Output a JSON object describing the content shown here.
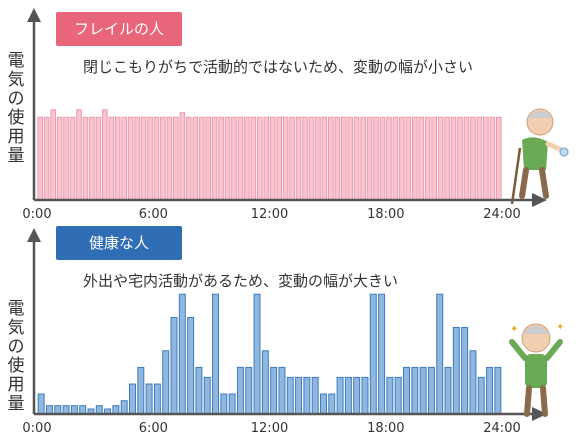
{
  "chart_data": [
    {
      "type": "bar",
      "title": "フレイルの人",
      "subtitle": "閉じこもりがちで活動的ではないため、変動の幅が小さい",
      "ylabel": "電気の使用量",
      "xlabel": "",
      "x_ticks": [
        "0:00",
        "6:00",
        "12:00",
        "18:00",
        "24:00"
      ],
      "x_range_hours": [
        0,
        24
      ],
      "ylim": [
        0,
        1
      ],
      "colors": {
        "badge": "#e8657a",
        "bar_fill": "#f9c4cf",
        "bar_stroke": "#ef9aac"
      },
      "values": [
        0.55,
        0.55,
        0.6,
        0.55,
        0.55,
        0.55,
        0.6,
        0.55,
        0.55,
        0.55,
        0.6,
        0.55,
        0.55,
        0.55,
        0.55,
        0.55,
        0.55,
        0.55,
        0.55,
        0.55,
        0.55,
        0.55,
        0.58,
        0.55,
        0.55,
        0.55,
        0.55,
        0.55,
        0.55,
        0.55,
        0.55,
        0.55,
        0.55,
        0.55,
        0.55,
        0.55,
        0.55,
        0.55,
        0.55,
        0.55,
        0.55,
        0.55,
        0.55,
        0.55,
        0.55,
        0.55,
        0.55,
        0.55,
        0.55,
        0.55,
        0.55,
        0.55,
        0.55,
        0.55,
        0.55,
        0.55,
        0.55,
        0.55,
        0.55,
        0.55,
        0.55,
        0.55,
        0.55,
        0.55,
        0.55,
        0.55,
        0.55,
        0.55,
        0.55,
        0.55,
        0.55,
        0.55
      ]
    },
    {
      "type": "bar",
      "title": "健康な人",
      "subtitle": "外出や宅内活動があるため、変動の幅が大きい",
      "ylabel": "電気の使用量",
      "xlabel": "",
      "x_ticks": [
        "0:00",
        "6:00",
        "12:00",
        "18:00",
        "24:00"
      ],
      "x_range_hours": [
        0,
        24
      ],
      "ylim": [
        0,
        1
      ],
      "colors": {
        "badge": "#2f6db5",
        "bar_fill": "#8fb8e0",
        "bar_stroke": "#3f7bbf"
      },
      "values": [
        0.12,
        0.05,
        0.05,
        0.05,
        0.05,
        0.05,
        0.03,
        0.05,
        0.03,
        0.05,
        0.08,
        0.18,
        0.28,
        0.18,
        0.18,
        0.38,
        0.58,
        0.72,
        0.58,
        0.28,
        0.22,
        0.72,
        0.12,
        0.12,
        0.28,
        0.28,
        0.72,
        0.38,
        0.28,
        0.28,
        0.22,
        0.22,
        0.22,
        0.22,
        0.12,
        0.12,
        0.22,
        0.22,
        0.22,
        0.22,
        0.72,
        0.72,
        0.22,
        0.22,
        0.28,
        0.28,
        0.28,
        0.28,
        0.72,
        0.28,
        0.52,
        0.52,
        0.38,
        0.22,
        0.28,
        0.28
      ]
    }
  ]
}
